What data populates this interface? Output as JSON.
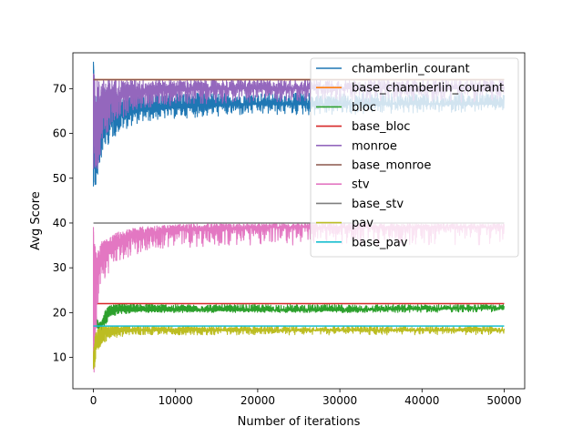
{
  "chart_data": {
    "type": "line",
    "title": "",
    "xlabel": "Number of iterations",
    "ylabel": "Avg Score",
    "xlim": [
      -2500,
      52500
    ],
    "ylim": [
      3,
      78
    ],
    "x_ticks": [
      0,
      10000,
      20000,
      30000,
      40000,
      50000
    ],
    "y_ticks": [
      10,
      20,
      30,
      40,
      50,
      60,
      70
    ],
    "grid": false,
    "legend_position": "top-right",
    "series": [
      {
        "name": "chamberlin_courant",
        "color": "#1f77b4",
        "kind": "noisy",
        "x": [
          0,
          200,
          500,
          1000,
          2000,
          3000,
          5000,
          8000,
          12000,
          20000,
          30000,
          40000,
          50000
        ],
        "values": [
          76,
          52,
          57,
          61,
          63,
          64,
          65,
          65.5,
          66,
          66.5,
          66.5,
          66.5,
          66.5
        ],
        "lower": [
          48,
          47,
          50,
          55,
          58,
          60,
          62,
          63,
          63.5,
          64,
          64,
          64.5,
          65
        ],
        "upper": [
          76,
          70,
          71,
          70,
          70,
          69,
          69,
          69,
          69,
          69,
          69,
          69,
          69
        ]
      },
      {
        "name": "base_chamberlin_courant",
        "color": "#ff7f0e",
        "kind": "const",
        "x": [
          0,
          50000
        ],
        "values": [
          72,
          72
        ]
      },
      {
        "name": "bloc",
        "color": "#2ca02c",
        "kind": "noisy",
        "x": [
          0,
          200,
          600,
          1000,
          1500,
          2000,
          3000,
          5000,
          10000,
          20000,
          30000,
          40000,
          50000
        ],
        "values": [
          20,
          18,
          17,
          17,
          19,
          20,
          20.5,
          20.5,
          20.5,
          20.5,
          20.5,
          20.8,
          21
        ],
        "lower": [
          17,
          16,
          16,
          16,
          17,
          19,
          19.5,
          20,
          20,
          20,
          20,
          20,
          20.2
        ],
        "upper": [
          22,
          20,
          18,
          18,
          21,
          21.5,
          22,
          22,
          21.8,
          21.8,
          21.8,
          21.8,
          21.8
        ]
      },
      {
        "name": "base_bloc",
        "color": "#d62728",
        "kind": "const",
        "x": [
          0,
          50000
        ],
        "values": [
          22,
          22
        ]
      },
      {
        "name": "monroe",
        "color": "#9467bd",
        "kind": "noisy",
        "x": [
          0,
          200,
          500,
          1000,
          2000,
          3000,
          5000,
          8000,
          12000,
          20000,
          30000,
          40000,
          50000
        ],
        "values": [
          72,
          55,
          60,
          64,
          67,
          68,
          69,
          69.5,
          69.8,
          70,
          70,
          70,
          70
        ],
        "lower": [
          47,
          48,
          52,
          57,
          61,
          63,
          65,
          66,
          66.5,
          67,
          67,
          67,
          67
        ],
        "upper": [
          74,
          72,
          72,
          72,
          72,
          72,
          72,
          72,
          72,
          72,
          72,
          72,
          72
        ]
      },
      {
        "name": "base_monroe",
        "color": "#8c564b",
        "kind": "const",
        "x": [
          0,
          50000
        ],
        "values": [
          72,
          72
        ]
      },
      {
        "name": "stv",
        "color": "#e377c2",
        "kind": "noisy",
        "x": [
          0,
          100,
          300,
          600,
          1000,
          2000,
          3000,
          5000,
          8000,
          12000,
          20000,
          30000,
          40000,
          50000
        ],
        "values": [
          38,
          15,
          26,
          30,
          32,
          34,
          35.5,
          37,
          38,
          38.5,
          39,
          39,
          39,
          39
        ],
        "lower": [
          6,
          6,
          15,
          22,
          26,
          29,
          31,
          33,
          34,
          34.5,
          35,
          35,
          35,
          35
        ],
        "upper": [
          40,
          36,
          34,
          35,
          36,
          37,
          38,
          39,
          39.5,
          39.8,
          40,
          40,
          40,
          40
        ]
      },
      {
        "name": "base_stv",
        "color": "#7f7f7f",
        "kind": "const",
        "x": [
          0,
          50000
        ],
        "values": [
          40,
          40
        ]
      },
      {
        "name": "pav",
        "color": "#bcbd22",
        "kind": "noisy",
        "x": [
          0,
          200,
          500,
          1000,
          2000,
          3000,
          5000,
          8000,
          12000,
          20000,
          30000,
          40000,
          50000
        ],
        "values": [
          8,
          12,
          14,
          15,
          15.5,
          15.8,
          16,
          16,
          16,
          16,
          16,
          16,
          16
        ],
        "lower": [
          7,
          8,
          11,
          13,
          14,
          14.5,
          15,
          15,
          15,
          15,
          15,
          15,
          15
        ],
        "upper": [
          11,
          15,
          16.5,
          17,
          17,
          17,
          17,
          17,
          17,
          17,
          17,
          17,
          17
        ]
      },
      {
        "name": "base_pav",
        "color": "#17becf",
        "kind": "const",
        "x": [
          0,
          50000
        ],
        "values": [
          17,
          17
        ]
      }
    ]
  }
}
